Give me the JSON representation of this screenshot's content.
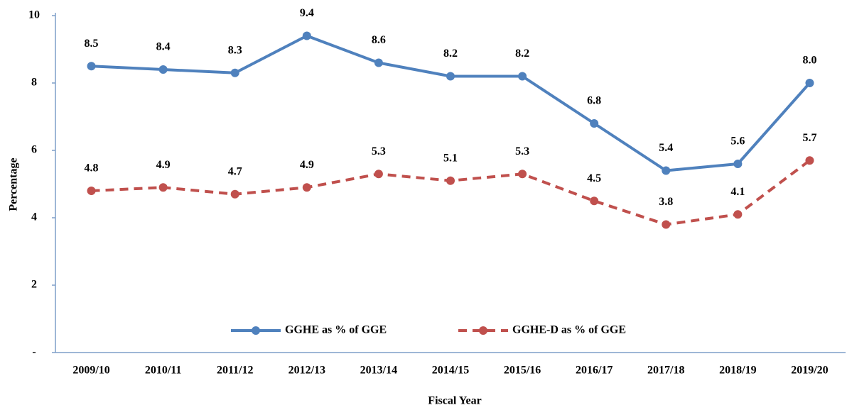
{
  "chart_data": {
    "type": "line",
    "x_label": "Fiscal Year",
    "y_label": "Percentage",
    "categories": [
      "2009/10",
      "2010/11",
      "2011/12",
      "2012/13",
      "2013/14",
      "2014/15",
      "2015/16",
      "2016/17",
      "2017/18",
      "2018/19",
      "2019/20"
    ],
    "series": [
      {
        "name": "GGHE as % of GGE",
        "color": "#4f81bd",
        "dashed": false,
        "values": [
          8.5,
          8.4,
          8.3,
          9.4,
          8.6,
          8.2,
          8.2,
          6.8,
          5.4,
          5.6,
          8.0
        ],
        "value_labels": [
          "8.5",
          "8.4",
          "8.3",
          "9.4",
          "8.6",
          "8.2",
          "8.2",
          "6.8",
          "5.4",
          "5.6",
          "8.0"
        ]
      },
      {
        "name": "GGHE-D as % of GGE",
        "color": "#c0504d",
        "dashed": true,
        "values": [
          4.8,
          4.9,
          4.7,
          4.9,
          5.3,
          5.1,
          5.3,
          4.5,
          3.8,
          4.1,
          5.7
        ]
      }
    ],
    "ylim": [
      0,
      10
    ],
    "yticks": [
      {
        "value": 0,
        "label": "-"
      },
      2,
      4,
      6,
      8,
      10
    ],
    "grid": false,
    "legend": "bottom"
  }
}
